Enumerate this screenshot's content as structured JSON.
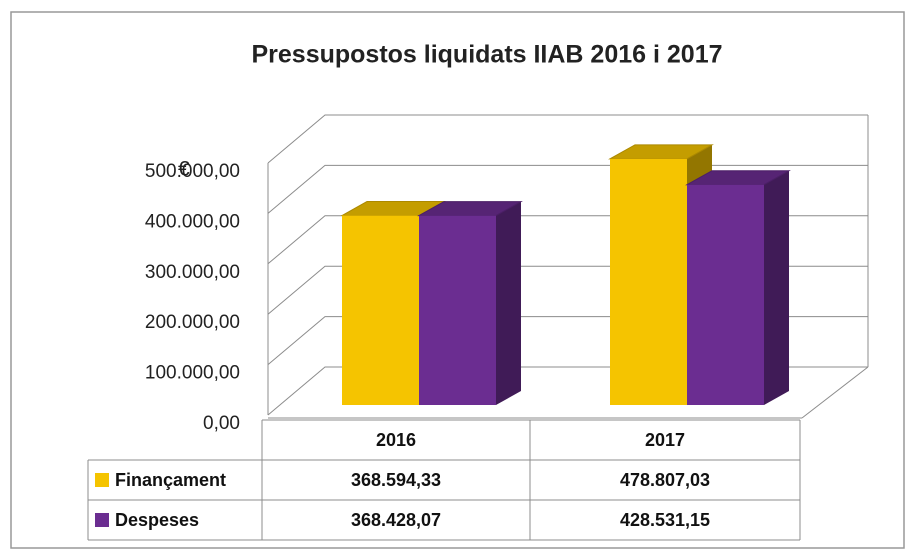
{
  "chart_data": {
    "type": "bar3d",
    "title": "Pressupostos liquidats IIAB 2016 i 2017",
    "y_label": "€",
    "categories": [
      "2016",
      "2017"
    ],
    "series": [
      {
        "name": "Finançament",
        "color": "#f5c400",
        "values": [
          368594.33,
          478807.03
        ],
        "value_labels": [
          "368.594,33",
          "478.807,03"
        ]
      },
      {
        "name": "Despeses",
        "color": "#6b2d91",
        "values": [
          368428.07,
          428531.15
        ],
        "value_labels": [
          "368.428,07",
          "428.531,15"
        ]
      }
    ],
    "ylim": [
      0,
      500000
    ],
    "yticks": [
      {
        "value": 0,
        "label": "0,00"
      },
      {
        "value": 100000,
        "label": "100.000,00"
      },
      {
        "value": 200000,
        "label": "200.000,00"
      },
      {
        "value": 300000,
        "label": "300.000,00"
      },
      {
        "value": 400000,
        "label": "400.000,00"
      },
      {
        "value": 500000,
        "label": "500.000,00"
      }
    ],
    "grid": true
  }
}
